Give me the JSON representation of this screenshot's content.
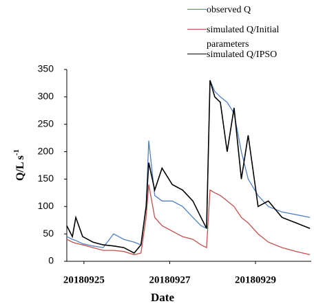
{
  "chart_data": {
    "type": "line",
    "x": [
      24.6,
      24.73,
      24.81,
      24.97,
      25.21,
      25.45,
      25.69,
      25.93,
      26.17,
      26.33,
      26.45,
      26.51,
      26.65,
      26.82,
      27.06,
      27.3,
      27.54,
      27.73,
      27.86,
      27.94,
      28.05,
      28.18,
      28.34,
      28.5,
      28.67,
      28.83,
      29.06,
      29.3,
      29.62,
      29.95,
      30.27
    ],
    "series": [
      {
        "name": "observed Q",
        "color": "#4f7fc4",
        "values": [
          45,
          40,
          38,
          32,
          28,
          25,
          50,
          40,
          35,
          30,
          100,
          220,
          120,
          110,
          110,
          100,
          80,
          65,
          60,
          330,
          310,
          300,
          290,
          270,
          200,
          150,
          120,
          100,
          90,
          85,
          80
        ]
      },
      {
        "name": "simulated Q/Initial parameters",
        "color": "#c0504d",
        "values": [
          40,
          35,
          33,
          30,
          25,
          20,
          20,
          18,
          12,
          15,
          80,
          140,
          80,
          65,
          55,
          45,
          40,
          30,
          25,
          130,
          125,
          120,
          110,
          100,
          80,
          70,
          50,
          35,
          25,
          18,
          12
        ]
      },
      {
        "name": "simulated Q/IPSO",
        "color": "#000000",
        "values": [
          65,
          45,
          80,
          45,
          35,
          30,
          28,
          25,
          15,
          30,
          100,
          180,
          130,
          170,
          140,
          130,
          110,
          80,
          60,
          330,
          300,
          290,
          200,
          280,
          150,
          230,
          100,
          110,
          80,
          70,
          60
        ]
      }
    ],
    "xlim": [
      24.6,
      30.3
    ],
    "xticks": [
      {
        "value": 25,
        "label": "20180925"
      },
      {
        "value": 27,
        "label": "20180927"
      },
      {
        "value": 29,
        "label": "20180929"
      }
    ],
    "ylim": [
      0,
      350
    ],
    "yticks": [
      0,
      50,
      100,
      150,
      200,
      250,
      300,
      350
    ],
    "xlabel": "Date",
    "ylabel": "Q/L s",
    "ylabel_exponent": "-1"
  }
}
